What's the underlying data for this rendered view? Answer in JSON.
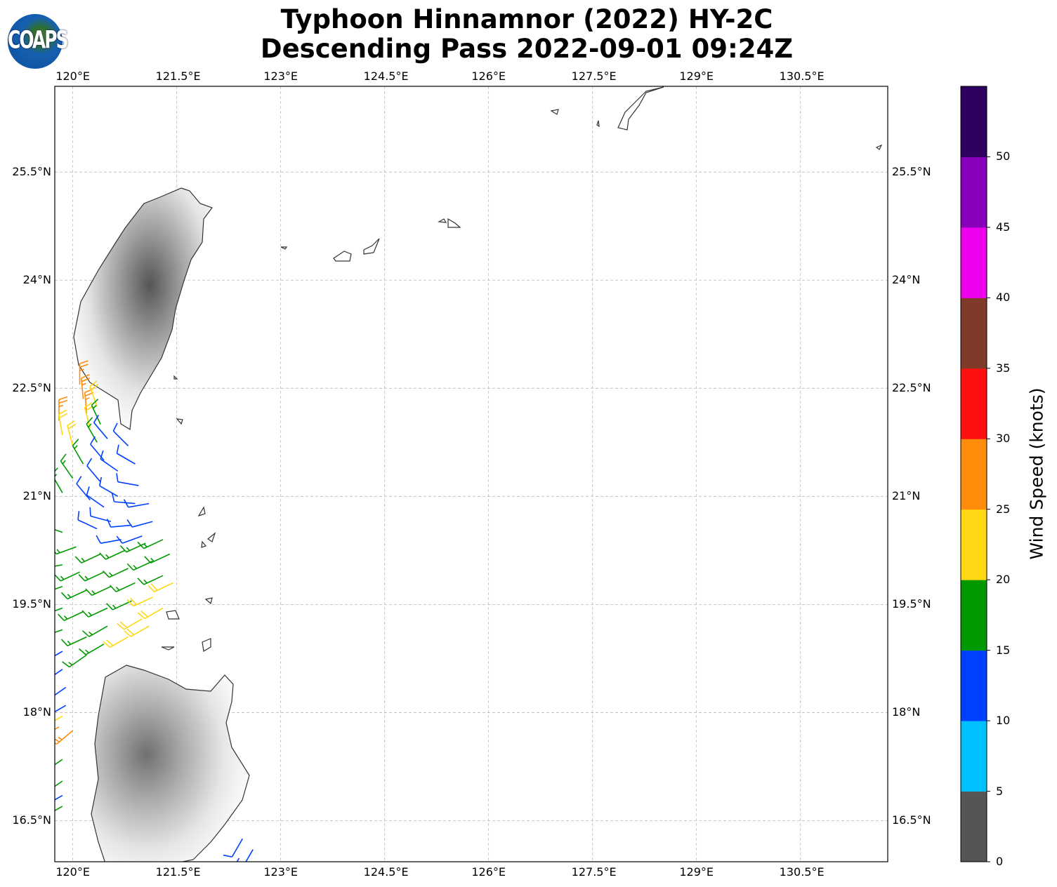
{
  "title_line1": "Typhoon Hinnamnor (2022) HY-2C",
  "title_line2": "Descending Pass 2022-09-01 09:24Z",
  "logo_text": "COAPS",
  "map": {
    "lon_range": [
      119.74,
      131.76
    ],
    "lat_range": [
      15.93,
      26.69
    ],
    "lon_ticks": [
      "120°E",
      "121.5°E",
      "123°E",
      "124.5°E",
      "126°E",
      "127.5°E",
      "129°E",
      "130.5°E"
    ],
    "lon_tick_values": [
      120,
      121.5,
      123,
      124.5,
      126,
      127.5,
      129,
      130.5
    ],
    "lat_ticks": [
      "25.5°N",
      "24°N",
      "22.5°N",
      "21°N",
      "19.5°N",
      "18°N",
      "16.5°N"
    ],
    "lat_tick_values": [
      25.5,
      24,
      22.5,
      21,
      19.5,
      18,
      16.5
    ]
  },
  "colorbar": {
    "label": "Wind Speed (knots)",
    "ticks": [
      "0",
      "5",
      "10",
      "15",
      "20",
      "25",
      "30",
      "35",
      "40",
      "45",
      "50"
    ],
    "bounds": [
      0,
      55
    ],
    "colors": [
      "#555555",
      "#00bfff",
      "#0040ff",
      "#009900",
      "#ffd712",
      "#ff8c0a",
      "#ff1010",
      "#7f3a2a",
      "#ee00ee",
      "#8800bb",
      "#2e0060"
    ]
  },
  "barbs_note_fields": [
    "lon",
    "lat",
    "speed_kt",
    "dir_deg"
  ],
  "barbs": [
    [
      120.1,
      22.55,
      27,
      0
    ],
    [
      120.15,
      22.35,
      27,
      355
    ],
    [
      120.2,
      22.15,
      27,
      355
    ],
    [
      119.8,
      22.05,
      27,
      0
    ],
    [
      120.35,
      22.25,
      22,
      340
    ],
    [
      119.85,
      21.85,
      22,
      350
    ],
    [
      120.0,
      21.7,
      22,
      345
    ],
    [
      120.25,
      21.95,
      22,
      345
    ],
    [
      120.4,
      22.0,
      17,
      335
    ],
    [
      120.35,
      21.75,
      17,
      330
    ],
    [
      120.15,
      21.45,
      17,
      330
    ],
    [
      120.0,
      21.25,
      17,
      325
    ],
    [
      119.85,
      21.05,
      17,
      330
    ],
    [
      120.5,
      21.8,
      12,
      320
    ],
    [
      120.8,
      21.7,
      12,
      315
    ],
    [
      120.9,
      21.45,
      12,
      300
    ],
    [
      120.45,
      21.5,
      12,
      320
    ],
    [
      120.65,
      21.35,
      12,
      305
    ],
    [
      120.95,
      21.15,
      12,
      280
    ],
    [
      120.4,
      21.2,
      12,
      320
    ],
    [
      120.65,
      21.0,
      12,
      300
    ],
    [
      120.9,
      20.9,
      12,
      275
    ],
    [
      121.1,
      20.9,
      12,
      260
    ],
    [
      120.25,
      20.95,
      12,
      320
    ],
    [
      120.45,
      20.85,
      12,
      305
    ],
    [
      120.55,
      20.65,
      12,
      285
    ],
    [
      120.85,
      20.6,
      12,
      265
    ],
    [
      121.15,
      20.65,
      12,
      255
    ],
    [
      120.35,
      20.55,
      12,
      295
    ],
    [
      120.7,
      20.4,
      12,
      260
    ],
    [
      121.0,
      20.45,
      12,
      250
    ],
    [
      119.85,
      20.5,
      17,
      290
    ],
    [
      120.05,
      20.3,
      17,
      250
    ],
    [
      120.4,
      20.2,
      17,
      245
    ],
    [
      120.75,
      20.25,
      17,
      245
    ],
    [
      121.05,
      20.35,
      17,
      245
    ],
    [
      121.3,
      20.4,
      17,
      245
    ],
    [
      119.85,
      20.05,
      17,
      260
    ],
    [
      120.1,
      19.95,
      17,
      245
    ],
    [
      120.45,
      19.95,
      17,
      245
    ],
    [
      120.8,
      20.0,
      17,
      245
    ],
    [
      121.15,
      20.1,
      17,
      245
    ],
    [
      121.4,
      20.2,
      17,
      245
    ],
    [
      119.85,
      19.75,
      17,
      250
    ],
    [
      120.2,
      19.7,
      17,
      245
    ],
    [
      120.55,
      19.75,
      17,
      245
    ],
    [
      120.9,
      19.8,
      17,
      245
    ],
    [
      121.3,
      19.9,
      17,
      245
    ],
    [
      119.85,
      19.45,
      17,
      250
    ],
    [
      120.15,
      19.4,
      17,
      245
    ],
    [
      120.5,
      19.45,
      17,
      245
    ],
    [
      120.85,
      19.55,
      17,
      245
    ],
    [
      121.15,
      19.6,
      22,
      245
    ],
    [
      121.45,
      19.8,
      22,
      245
    ],
    [
      121.0,
      19.3,
      22,
      240
    ],
    [
      121.3,
      19.45,
      22,
      240
    ],
    [
      120.8,
      19.05,
      22,
      240
    ],
    [
      121.1,
      19.2,
      22,
      240
    ],
    [
      119.85,
      19.15,
      17,
      250
    ],
    [
      120.2,
      19.05,
      17,
      245
    ],
    [
      120.5,
      19.2,
      17,
      240
    ],
    [
      120.2,
      18.8,
      17,
      235
    ],
    [
      120.45,
      18.95,
      17,
      240
    ],
    [
      119.85,
      18.85,
      12,
      240
    ],
    [
      119.85,
      18.6,
      12,
      235
    ],
    [
      119.9,
      18.35,
      12,
      235
    ],
    [
      119.9,
      18.1,
      12,
      240
    ],
    [
      119.85,
      17.95,
      22,
      240
    ],
    [
      120.0,
      17.75,
      27,
      230
    ],
    [
      119.8,
      17.8,
      27,
      240
    ],
    [
      119.85,
      17.35,
      17,
      235
    ],
    [
      119.85,
      17.05,
      17,
      235
    ],
    [
      119.85,
      16.85,
      12,
      240
    ],
    [
      119.85,
      16.7,
      17,
      240
    ],
    [
      122.45,
      16.25,
      12,
      210
    ],
    [
      122.6,
      16.1,
      12,
      210
    ],
    [
      122.4,
      15.98,
      12,
      210
    ]
  ]
}
